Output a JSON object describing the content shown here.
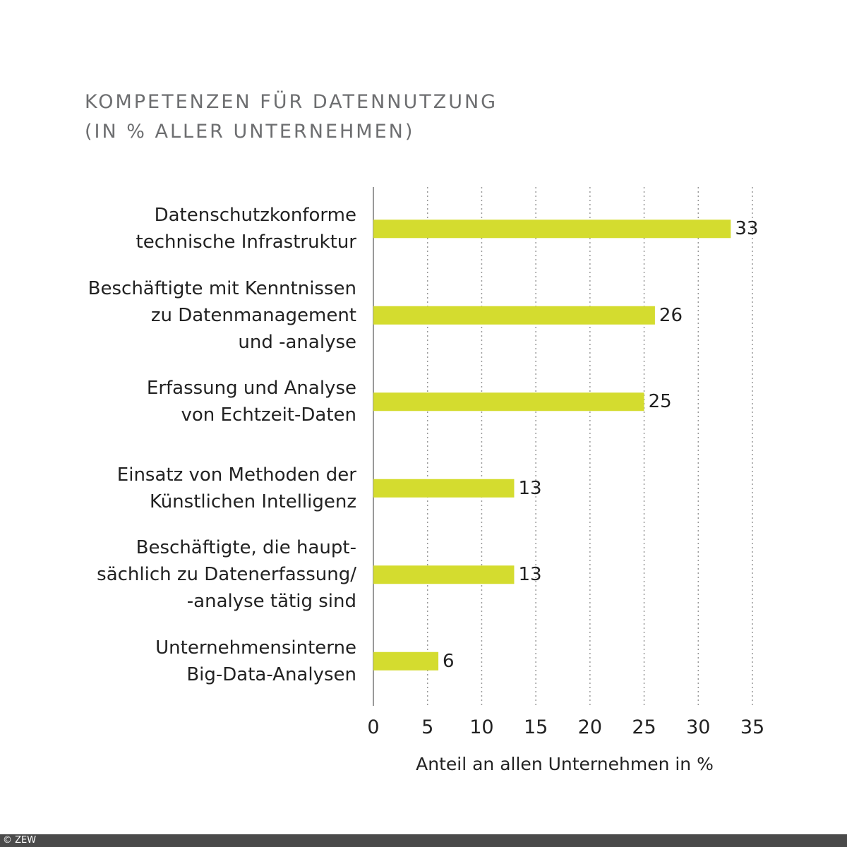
{
  "chart_data": {
    "type": "bar",
    "orientation": "horizontal",
    "title": "KOMPETENZEN FÜR DATENNUTZUNG\n(IN % ALLER UNTERNEHMEN)",
    "categories": [
      "Datenschutzkonforme\ntechnische Infrastruktur",
      "Beschäftigte mit Kenntnissen\nzu Datenmanagement\nund -analyse",
      "Erfassung und Analyse\nvon Echtzeit-Daten",
      "Einsatz von Methoden der\nKünstlichen Intelligenz",
      "Beschäftigte, die haupt-\nsächlich zu Datenerfassung/\n-analyse tätig sind",
      "Unternehmensinterne\nBig-Data-Analysen"
    ],
    "values": [
      33,
      26,
      25,
      13,
      13,
      6
    ],
    "color": "#d4dc2f",
    "xlim": [
      0,
      35
    ],
    "xticks": [
      0,
      5,
      10,
      15,
      20,
      25,
      30,
      35
    ],
    "xlabel": "Anteil an allen Unternehmen in %",
    "grid": true,
    "source": "© ZEW"
  }
}
